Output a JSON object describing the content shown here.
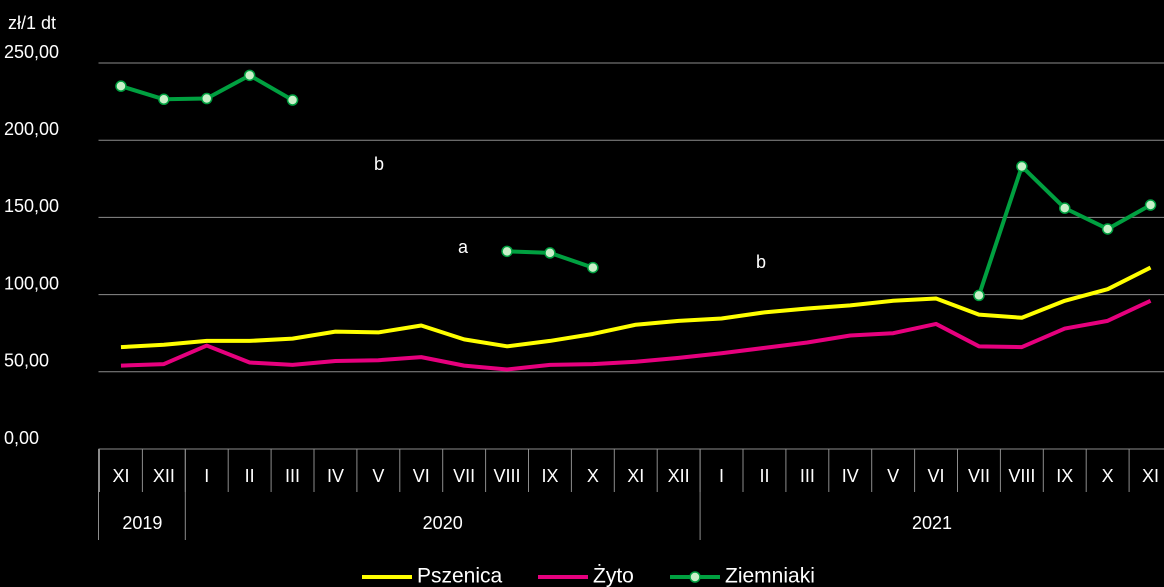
{
  "chart_data": {
    "type": "line",
    "y_axis_label": "zł/1 dt",
    "categories": [
      "XI",
      "XII",
      "I",
      "II",
      "III",
      "IV",
      "V",
      "VI",
      "VII",
      "VIII",
      "IX",
      "X",
      "XI",
      "XII",
      "I",
      "II",
      "III",
      "IV",
      "V",
      "VI",
      "VII",
      "VIII",
      "IX",
      "X",
      "XI"
    ],
    "year_groups": [
      {
        "label": "2019",
        "span": 2
      },
      {
        "label": "2020",
        "span": 12
      },
      {
        "label": "2021",
        "span": 11
      }
    ],
    "series": [
      {
        "name": "Pszenica",
        "color": "#ffff00",
        "values": [
          66,
          67.5,
          70,
          70,
          71.5,
          76,
          75.5,
          80,
          71,
          66.5,
          70,
          74.5,
          80.5,
          83,
          84.5,
          88.5,
          91,
          93,
          96,
          97.5,
          87,
          85,
          96,
          103.5,
          117.5
        ]
      },
      {
        "name": "Żyto",
        "color": "#e6007e",
        "values": [
          54,
          55,
          67,
          56,
          54.5,
          57,
          57.5,
          59.5,
          54,
          51.5,
          54.5,
          55,
          56.5,
          59,
          62,
          65.5,
          69,
          73.5,
          75,
          81,
          66.5,
          66,
          78,
          83,
          96
        ]
      },
      {
        "name": "Ziemniaki",
        "color": "#00a040",
        "marker": true,
        "values": [
          235,
          226.5,
          227,
          242,
          226,
          null,
          null,
          null,
          null,
          128,
          127,
          117.5,
          null,
          null,
          null,
          null,
          null,
          null,
          null,
          null,
          99.5,
          183,
          156,
          142.5,
          158
        ]
      }
    ],
    "annotations": [
      "b",
      "a",
      "b"
    ],
    "ylim": [
      0,
      250
    ],
    "yticks": [
      {
        "value": 0,
        "label": "0,00"
      },
      {
        "value": 50,
        "label": "50,00"
      },
      {
        "value": 100,
        "label": "100,00"
      },
      {
        "value": 150,
        "label": "150,00"
      },
      {
        "value": 200,
        "label": "200,00"
      },
      {
        "value": 250,
        "label": "250,00"
      }
    ],
    "grid": true,
    "legend": "bottom"
  }
}
